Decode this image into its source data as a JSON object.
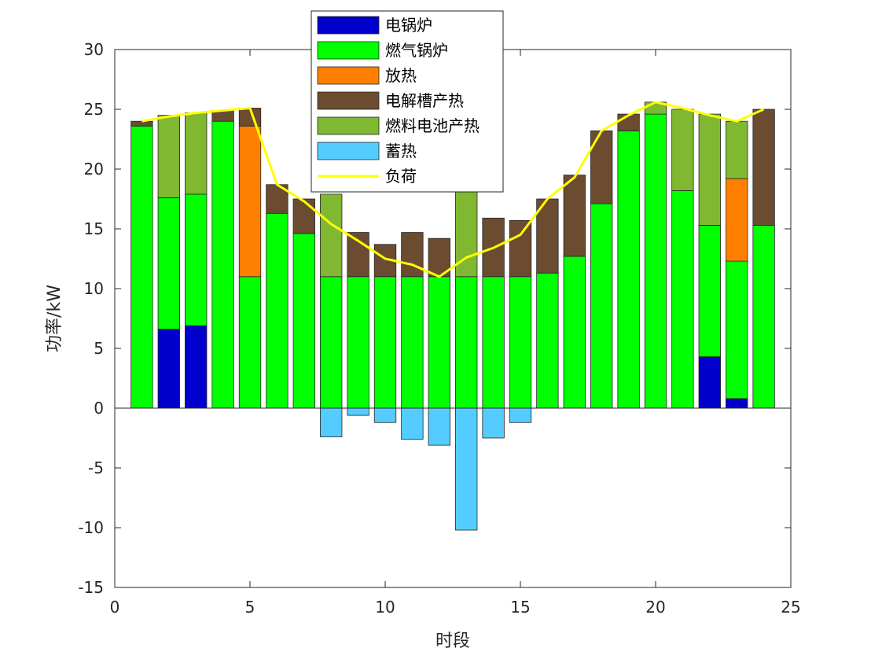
{
  "chart_data": {
    "type": "bar",
    "stacked": true,
    "title": "",
    "xlabel": "时段",
    "ylabel": "功率/kW",
    "xlim": [
      0,
      25
    ],
    "ylim": [
      -15,
      30
    ],
    "x_ticks": [
      "0",
      "5",
      "10",
      "15",
      "20",
      "25"
    ],
    "y_ticks": [
      "30",
      "25",
      "20",
      "15",
      "10",
      "5",
      "0",
      "-5",
      "-10",
      "-15"
    ],
    "categories": [
      1,
      2,
      3,
      4,
      5,
      6,
      7,
      8,
      9,
      10,
      11,
      12,
      13,
      14,
      15,
      16,
      17,
      18,
      19,
      20,
      21,
      22,
      23,
      24
    ],
    "series": [
      {
        "name": "电锅炉",
        "color": "#0000CD",
        "values": [
          0,
          6.6,
          6.9,
          0,
          0,
          0,
          0,
          0,
          0,
          0,
          0,
          0,
          0,
          0,
          0,
          0,
          0,
          0,
          0,
          0,
          0,
          4.3,
          0.8,
          0
        ]
      },
      {
        "name": "燃气锅炉",
        "color": "#00FF00",
        "values": [
          23.6,
          11.0,
          11.0,
          24.0,
          11.0,
          16.3,
          14.6,
          11.0,
          11.0,
          11.0,
          11.0,
          11.0,
          11.0,
          11.0,
          11.0,
          11.3,
          12.7,
          17.1,
          23.2,
          24.6,
          18.2,
          11.0,
          11.5,
          15.3
        ]
      },
      {
        "name": "放热",
        "color": "#FF8000",
        "values": [
          0,
          0,
          0,
          0,
          12.6,
          0,
          0,
          0,
          0,
          0,
          0,
          0,
          0,
          0,
          0,
          0,
          0,
          0,
          0,
          0,
          0,
          0,
          6.9,
          0
        ]
      },
      {
        "name": "电解槽产热",
        "color": "#6B4C30",
        "values": [
          0.4,
          0,
          0,
          0.9,
          1.5,
          2.4,
          2.9,
          0,
          3.7,
          2.7,
          3.7,
          3.2,
          0,
          4.9,
          4.7,
          6.2,
          6.8,
          6.1,
          1.4,
          0,
          0,
          0,
          0,
          9.7
        ]
      },
      {
        "name": "燃料电池产热",
        "color": "#80B832",
        "values": [
          0,
          6.9,
          6.8,
          0,
          0,
          0,
          0,
          6.9,
          0,
          0,
          0,
          0,
          7.8,
          0,
          0,
          0,
          0,
          0,
          0,
          1.0,
          6.8,
          9.3,
          4.8,
          0
        ]
      },
      {
        "name": "蓄热",
        "color": "#55CCFF",
        "values": [
          0,
          0,
          0,
          0,
          0,
          0,
          0,
          -2.4,
          -0.6,
          -1.2,
          -2.6,
          -3.1,
          -10.2,
          -2.5,
          -1.2,
          0,
          0,
          0,
          0,
          0,
          0,
          0,
          0,
          0
        ]
      }
    ],
    "line": {
      "name": "负荷",
      "color": "#FFFF00",
      "values": [
        24.0,
        24.4,
        24.7,
        24.9,
        25.1,
        18.7,
        17.3,
        15.4,
        14.0,
        12.5,
        12.0,
        11.0,
        12.6,
        13.4,
        14.5,
        17.5,
        19.3,
        23.2,
        24.5,
        25.6,
        25.1,
        24.5,
        24.0,
        25.0
      ]
    },
    "grid": false,
    "legend_position": "top-center"
  }
}
